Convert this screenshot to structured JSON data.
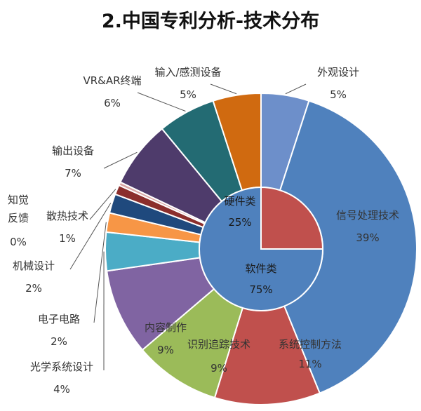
{
  "chart_data": {
    "type": "pie",
    "title": "2.中国专利分析-技术分布",
    "inner": [
      {
        "label": "硬件类",
        "pct": "25%",
        "value": 25,
        "color": "#c0504d"
      },
      {
        "label": "软件类",
        "pct": "75%",
        "value": 75,
        "color": "#4f81bd"
      }
    ],
    "outer": [
      {
        "label": "外观设计",
        "pct": "5%",
        "value": 5,
        "color": "#6d8fca"
      },
      {
        "label": "信号处理技术",
        "pct": "39%",
        "value": 39,
        "color": "#4f81bd"
      },
      {
        "label": "系统控制方法",
        "pct": "11%",
        "value": 11,
        "color": "#c0504d"
      },
      {
        "label": "识别追踪技术",
        "pct": "9%",
        "value": 9,
        "color": "#9bbb59"
      },
      {
        "label": "内容制作",
        "pct": "9%",
        "value": 9,
        "color": "#8064a2"
      },
      {
        "label": "光学系统设计",
        "pct": "4%",
        "value": 4,
        "color": "#4bacc6"
      },
      {
        "label": "电子电路",
        "pct": "2%",
        "value": 2,
        "color": "#f79646"
      },
      {
        "label": "机械设计",
        "pct": "2%",
        "value": 2,
        "color": "#1f497d"
      },
      {
        "label": "散热技术",
        "pct": "1%",
        "value": 1,
        "color": "#8b2e2c"
      },
      {
        "label": "知觉反馈",
        "pct": "0%",
        "value": 0.35,
        "color": "#d9a7a5"
      },
      {
        "label": "输出设备",
        "pct": "7%",
        "value": 7,
        "color": "#4e3b6b"
      },
      {
        "label": "VR&AR终端",
        "pct": "6%",
        "value": 6,
        "color": "#236b73"
      },
      {
        "label": "输入/感测设备",
        "pct": "5%",
        "value": 5,
        "color": "#d06a10"
      }
    ]
  }
}
